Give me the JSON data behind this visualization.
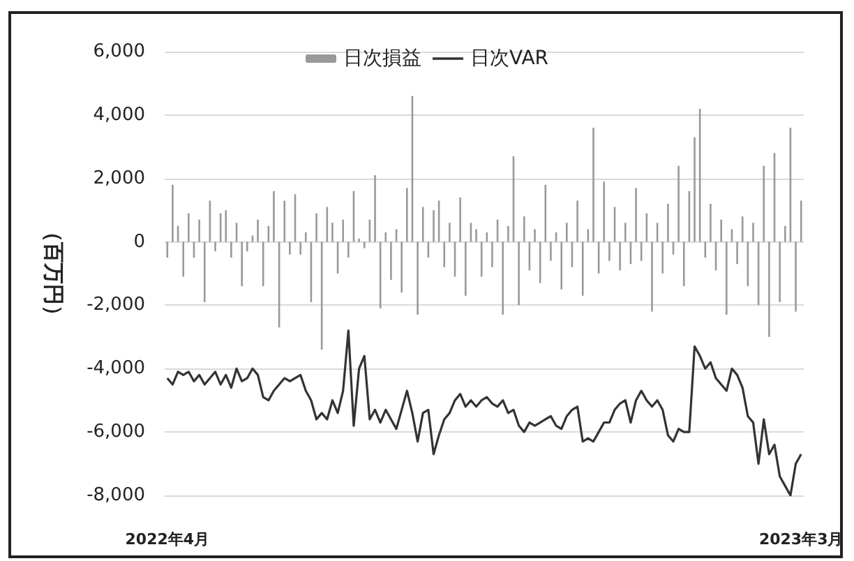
{
  "chart_data": {
    "type": "bar",
    "ylabel": "（百万円）",
    "categories": [
      "2022年4月",
      null,
      null,
      null,
      null,
      null,
      null,
      null,
      null,
      null,
      null,
      null,
      null,
      null,
      null,
      null,
      null,
      null,
      null,
      null,
      null,
      null,
      null,
      null,
      null,
      null,
      null,
      null,
      null,
      null,
      null,
      null,
      null,
      null,
      null,
      null,
      null,
      null,
      null,
      null,
      null,
      null,
      null,
      null,
      null,
      null,
      null,
      null,
      null,
      null,
      null,
      null,
      null,
      null,
      null,
      null,
      null,
      null,
      null,
      null,
      null,
      null,
      null,
      null,
      null,
      null,
      null,
      null,
      null,
      null,
      null,
      null,
      null,
      null,
      null,
      null,
      null,
      null,
      null,
      null,
      null,
      null,
      null,
      null,
      null,
      null,
      null,
      null,
      null,
      null,
      null,
      null,
      null,
      null,
      null,
      null,
      null,
      null,
      null,
      null,
      null,
      null,
      null,
      null,
      null,
      null,
      null,
      null,
      null,
      null,
      null,
      null,
      null,
      null,
      null,
      null,
      null,
      null,
      null,
      "2023年3月"
    ],
    "series": [
      {
        "name": "日次損益",
        "color": "#999999",
        "values": [
          -500,
          1800,
          500,
          -1100,
          900,
          -500,
          700,
          -1900,
          1300,
          -300,
          900,
          1000,
          -500,
          600,
          -1400,
          -300,
          200,
          700,
          -1400,
          500,
          1600,
          -2700,
          1300,
          -400,
          1500,
          -400,
          300,
          -1900,
          900,
          -3400,
          1100,
          600,
          -1000,
          700,
          -500,
          1600,
          100,
          -200,
          700,
          2100,
          -2100,
          300,
          -1200,
          400,
          -1600,
          1700,
          4600,
          -2300,
          1100,
          -500,
          1000,
          1300,
          -800,
          600,
          -1100,
          1400,
          -1700,
          600,
          400,
          -1100,
          300,
          -800,
          700,
          -2300,
          500,
          2700,
          -2000,
          800,
          -900,
          400,
          -1300,
          1800,
          -600,
          300,
          -1500,
          600,
          -800,
          1300,
          -1700,
          400,
          3600,
          -1000,
          1900,
          -600,
          1100,
          -900,
          600,
          -700,
          1700,
          -600,
          900,
          -2200,
          600,
          -1000,
          1200,
          -400,
          2400,
          -1400,
          1600,
          3300,
          4200,
          -500,
          1200,
          -900,
          700,
          -2300,
          400,
          -700,
          800,
          -1400,
          600,
          -2000,
          2400,
          -3000,
          2800,
          -1900,
          500,
          3600,
          -2200,
          1300
        ]
      },
      {
        "name": "日次VAR",
        "type": "line",
        "color": "#333333",
        "values": [
          -4300,
          -4500,
          -4100,
          -4200,
          -4100,
          -4400,
          -4200,
          -4500,
          -4300,
          -4100,
          -4500,
          -4200,
          -4600,
          -4000,
          -4400,
          -4300,
          -4000,
          -4200,
          -4900,
          -5000,
          -4700,
          -4500,
          -4300,
          -4400,
          -4300,
          -4200,
          -4700,
          -5000,
          -5600,
          -5400,
          -5600,
          -5000,
          -5400,
          -4700,
          -2800,
          -5800,
          -4000,
          -3600,
          -5600,
          -5300,
          -5700,
          -5300,
          -5600,
          -5900,
          -5300,
          -4700,
          -5400,
          -6300,
          -5400,
          -5300,
          -6700,
          -6100,
          -5600,
          -5400,
          -5000,
          -4800,
          -5200,
          -5000,
          -5200,
          -5000,
          -4900,
          -5100,
          -5200,
          -5000,
          -5400,
          -5300,
          -5800,
          -6000,
          -5700,
          -5800,
          -5700,
          -5600,
          -5500,
          -5800,
          -5900,
          -5500,
          -5300,
          -5200,
          -6300,
          -6200,
          -6300,
          -6000,
          -5700,
          -5700,
          -5300,
          -5100,
          -5000,
          -5700,
          -5000,
          -4700,
          -5000,
          -5200,
          -5000,
          -5300,
          -6100,
          -6300,
          -5900,
          -6000,
          -6000,
          -3300,
          -3600,
          -4000,
          -3800,
          -4300,
          -4500,
          -4700,
          -4000,
          -4200,
          -4600,
          -5500,
          -5700,
          -7000,
          -5600,
          -6700,
          -6400,
          -7400,
          -7700,
          -8000,
          -7000,
          -6700
        ]
      }
    ],
    "ylim": [
      -8000,
      6000
    ],
    "yticks": [
      {
        "value": -8000,
        "label": "-8,000"
      },
      {
        "value": -6000,
        "label": "-6,000"
      },
      {
        "value": -4000,
        "label": "-4,000"
      },
      {
        "value": -2000,
        "label": "-2,000"
      },
      0,
      {
        "value": 2000,
        "label": "2,000"
      },
      {
        "value": 4000,
        "label": "4,000"
      },
      {
        "value": 6000,
        "label": "6,000"
      }
    ],
    "grid": "y",
    "legend": "top",
    "marker": "none",
    "line_style": "solid"
  }
}
